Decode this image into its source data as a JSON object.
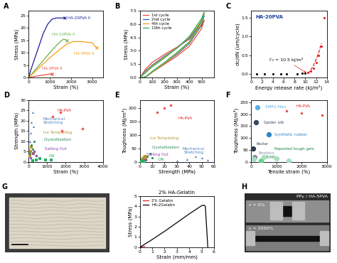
{
  "chart_data": [
    {
      "label": "A",
      "type": "line",
      "x_label": "Strain (%)",
      "y_label": "Stress (MPa)",
      "xlim": [
        0,
        3500
      ],
      "xticks": [
        0,
        1000,
        2000,
        3000
      ],
      "ylim": [
        0,
        27
      ],
      "yticks": [
        0,
        5,
        10,
        15,
        20,
        25
      ],
      "series": [
        {
          "name": "HA-20PVA II",
          "color": "#1c1c9c",
          "marker": "x",
          "x": [
            0,
            100,
            300,
            500,
            700,
            900,
            1100,
            1300,
            1500,
            1700
          ],
          "values": [
            0,
            3,
            8,
            13,
            18,
            21.5,
            23.5,
            24,
            24,
            24
          ]
        },
        {
          "name": "HA-10PVA II",
          "color": "#6ab04c",
          "marker": "x",
          "x": [
            0,
            300,
            600,
            900,
            1200,
            1500,
            1650,
            1800
          ],
          "values": [
            0,
            3,
            6,
            9,
            12,
            14.5,
            15.5,
            15
          ]
        },
        {
          "name": "HA-5PVA II",
          "color": "#f39c12",
          "marker": "x",
          "x": [
            0,
            500,
            1000,
            1500,
            1800,
            2100,
            2500,
            3000,
            3200
          ],
          "values": [
            0,
            4,
            8,
            11.5,
            13.5,
            14.5,
            14.5,
            14,
            12
          ]
        },
        {
          "name": "HA-2PVA II",
          "color": "#e74c3c",
          "marker": "x",
          "x": [
            0,
            300,
            600,
            900,
            1100
          ],
          "values": [
            0,
            0.5,
            0.9,
            1.3,
            1.5
          ]
        }
      ]
    },
    {
      "label": "B",
      "type": "line",
      "x_label": "Strain (%)",
      "y_label": "Stress (MPa)",
      "xlim": [
        0,
        600
      ],
      "xticks": [
        0,
        100,
        200,
        300,
        400,
        500
      ],
      "ylim": [
        0,
        7.5
      ],
      "yticks": [
        0.0,
        1.5,
        3.0,
        4.5,
        6.0,
        7.5
      ],
      "legend": "upper left",
      "x": [
        0,
        50,
        100,
        200,
        300,
        400,
        500,
        520,
        500,
        400,
        300,
        200,
        100,
        50,
        20
      ],
      "series": [
        {
          "name": "1st cycle",
          "color": "#e74c3c",
          "values": [
            0,
            1.0,
            1.7,
            2.6,
            3.4,
            4.3,
            5.8,
            6.4,
            5.5,
            3.5,
            2.4,
            1.5,
            0.6,
            0.1,
            0
          ]
        },
        {
          "name": "2nd cycle",
          "color": "#2e5fc1",
          "values": [
            0,
            0.8,
            1.4,
            2.4,
            3.3,
            4.4,
            6.2,
            6.9,
            5.9,
            3.8,
            2.6,
            1.6,
            0.6,
            0.1,
            0
          ]
        },
        {
          "name": "4th cycle",
          "color": "#f39c12",
          "values": [
            0,
            0.7,
            1.3,
            2.3,
            3.3,
            4.5,
            6.4,
            7.1,
            6.1,
            3.9,
            2.7,
            1.6,
            0.6,
            0.1,
            0
          ]
        },
        {
          "name": "10th cycle",
          "color": "#27ae60",
          "values": [
            0,
            0.6,
            1.2,
            2.2,
            3.3,
            4.6,
            6.6,
            7.3,
            6.3,
            4.0,
            2.8,
            1.7,
            0.7,
            0.1,
            0
          ]
        }
      ]
    },
    {
      "label": "C",
      "type": "scatter",
      "title": "HA-20PVA",
      "x_label": "Energy release rate (kJ/m²)",
      "y_label": "dc/dN (um/cycle)",
      "xlim": [
        0,
        14
      ],
      "xticks": [
        0,
        2,
        4,
        6,
        8,
        10,
        12,
        14
      ],
      "ylim": [
        -0.1,
        1.7
      ],
      "yticks": [
        0.0,
        0.5,
        1.0,
        1.5
      ],
      "annotations": [
        {
          "text": "Γ₀ = 10.5 kJ/m²",
          "x": 10.5,
          "y": 0
        }
      ],
      "series": [
        {
          "color": "#000000",
          "marker": "circle",
          "x": [
            1,
            2.5,
            4,
            5.5,
            6.5,
            8.5,
            9.5,
            10
          ],
          "values": [
            0,
            0,
            0,
            0,
            0,
            0,
            0.01,
            0.02
          ]
        },
        {
          "color": "#e02020",
          "marker": "circle",
          "x": [
            10.5,
            11,
            11.5,
            12,
            12.5,
            13,
            13.5
          ],
          "values": [
            0.03,
            0.08,
            0.15,
            0.3,
            0.5,
            0.75,
            1.5
          ]
        },
        {
          "type": "line",
          "color": "#e02020",
          "line_style": "dashed",
          "x": [
            10.5,
            11,
            11.5,
            12,
            12.5,
            13
          ],
          "values": [
            0,
            0.1,
            0.22,
            0.38,
            0.58,
            0.82
          ]
        }
      ]
    },
    {
      "label": "D",
      "type": "scatter",
      "x_label": "Strain (%)",
      "y_label": "Strength (MPa)",
      "xlim": [
        0,
        4000
      ],
      "xticks": [
        0,
        1000,
        2000,
        3000,
        4000
      ],
      "ylim": [
        0,
        30
      ],
      "yticks": [
        0,
        5,
        10,
        15,
        20,
        25,
        30
      ],
      "series": [
        {
          "name": "Mechanical\nStretching",
          "color": "#4f81bd",
          "marker": "triangle",
          "x": [
            30,
            60,
            100,
            150,
            200,
            250
          ],
          "values": [
            6,
            10,
            14,
            19,
            24,
            17
          ]
        },
        {
          "name": "Ice Templating",
          "color": "#b8962e",
          "marker": "square",
          "x": [
            50,
            100,
            150,
            250
          ],
          "values": [
            3,
            5,
            7,
            4
          ]
        },
        {
          "name": "Crystallization",
          "color": "#2e8b57",
          "marker": "circle",
          "x": [
            80,
            150,
            200,
            300
          ],
          "values": [
            4,
            8,
            6,
            10
          ]
        },
        {
          "name": "Salting Out",
          "color": "#8e44ad",
          "marker": "diamond",
          "x": [
            100,
            200,
            300,
            400
          ],
          "values": [
            2,
            4,
            5,
            3
          ]
        },
        {
          "name": "DN",
          "color": "#27ae60",
          "marker": "square",
          "x": [
            200,
            400,
            600,
            900,
            1200
          ],
          "values": [
            0.5,
            1,
            1.5,
            1,
            0.8
          ]
        },
        {
          "name": "HA-PVA",
          "color": "#e02020",
          "marker": "star",
          "x": [
            1300,
            1700,
            1800,
            2900
          ],
          "values": [
            22,
            24,
            15,
            16
          ]
        }
      ]
    },
    {
      "label": "E",
      "type": "scatter",
      "x_label": "Strength (MPa)",
      "y_label": "Toughness (MJ/m³)",
      "xlim": [
        0,
        60
      ],
      "xticks": [
        0,
        10,
        20,
        30,
        40,
        50,
        60
      ],
      "ylim": [
        0,
        230
      ],
      "yticks": [
        0,
        50,
        100,
        150,
        200
      ],
      "series": [
        {
          "name": "Mechanical\nStretching",
          "color": "#4f81bd",
          "marker": "triangle",
          "x": [
            30,
            38,
            45,
            50,
            55
          ],
          "values": [
            5,
            10,
            20,
            15,
            8
          ]
        },
        {
          "name": "Ice Templating",
          "color": "#b8962e",
          "marker": "square",
          "x": [
            2,
            3,
            4,
            5
          ],
          "values": [
            10,
            15,
            20,
            12
          ]
        },
        {
          "name": "Crystallization",
          "color": "#2e8b57",
          "marker": "circle",
          "x": [
            3,
            6,
            8,
            10
          ],
          "values": [
            5,
            20,
            30,
            15
          ]
        },
        {
          "name": "Salting Out",
          "color": "#8e44ad",
          "marker": "diamond",
          "x": [
            1,
            2,
            3,
            5
          ],
          "values": [
            2,
            5,
            8,
            6
          ]
        },
        {
          "name": "DN",
          "color": "#27ae60",
          "marker": "square",
          "x": [
            1,
            1.5,
            2,
            3
          ],
          "values": [
            1,
            2,
            3,
            1.5
          ]
        },
        {
          "name": "HA-PVA",
          "color": "#e02020",
          "marker": "star",
          "x": [
            14,
            20,
            25
          ],
          "values": [
            185,
            200,
            210
          ]
        }
      ]
    },
    {
      "label": "F",
      "type": "scatter",
      "x_label": "Tensile strain (%)",
      "y_label": "Toughness (MJ/m³)",
      "xlim": [
        0,
        3000
      ],
      "xticks": [
        0,
        1000,
        2000,
        3000
      ],
      "ylim": [
        0,
        260
      ],
      "yticks": [
        0,
        50,
        100,
        150,
        200,
        250
      ],
      "series": [
        {
          "name": "SMPU fiber",
          "color": "#5dade2",
          "marker": "circle",
          "x": [
            250
          ],
          "values": [
            230
          ]
        },
        {
          "name": "Spider silk",
          "color": "#34495e",
          "marker": "circle",
          "x": [
            200
          ],
          "values": [
            165
          ]
        },
        {
          "name": "Synthetic rubber",
          "color": "#2e86c1",
          "marker": "circle",
          "x": [
            700
          ],
          "values": [
            115
          ]
        },
        {
          "name": "Kevlar",
          "color": "#2c3e50",
          "marker": "circle",
          "x": [
            80
          ],
          "values": [
            55
          ]
        },
        {
          "name": "Tendons",
          "color": "#85929e",
          "marker": "circle",
          "x": [
            150
          ],
          "values": [
            20
          ]
        },
        {
          "name": "PDMS",
          "color": "#58d68d",
          "marker": "circle",
          "x": [
            400
          ],
          "values": [
            5
          ]
        },
        {
          "name": "Reported tough gels",
          "color": "#a9dfbf",
          "marker": "circle",
          "x": [
            100,
            500,
            1000,
            1500
          ],
          "values": [
            10,
            20,
            15,
            5
          ]
        },
        {
          "name": "HA-PVA",
          "color": "#e02020",
          "marker": "star",
          "x": [
            1400,
            2000,
            2800
          ],
          "values": [
            215,
            205,
            195
          ]
        }
      ]
    },
    {
      "type": "line",
      "title": "2% HA-Gelatin",
      "x_label": "Strain (mm/mm)",
      "y_label": "Stress (MPa)",
      "xlim": [
        0,
        6
      ],
      "xticks": [
        0,
        1,
        2,
        3,
        4,
        5,
        6
      ],
      "ylim": [
        0,
        5
      ],
      "yticks": [
        0,
        1,
        2,
        3,
        4,
        5
      ],
      "legend": "upper left",
      "series": [
        {
          "name": "2% Gelatin",
          "color": "#e02020",
          "x": [
            0,
            0.2,
            0.4
          ],
          "values": [
            0,
            0.05,
            0.08
          ]
        },
        {
          "name": "HA-2Gelatin",
          "color": "#000000",
          "x": [
            0,
            1,
            2,
            3,
            4,
            5,
            5.2,
            5.3,
            5.5
          ],
          "values": [
            0,
            0.75,
            1.55,
            2.4,
            3.25,
            4.05,
            4.1,
            4.0,
            0
          ]
        }
      ]
    }
  ],
  "images": [
    {
      "label": "G"
    },
    {
      "label": "H",
      "title": "PPy / HA-5PVA",
      "texts": [
        "ε = 0%",
        "ε = 2000%"
      ]
    }
  ]
}
